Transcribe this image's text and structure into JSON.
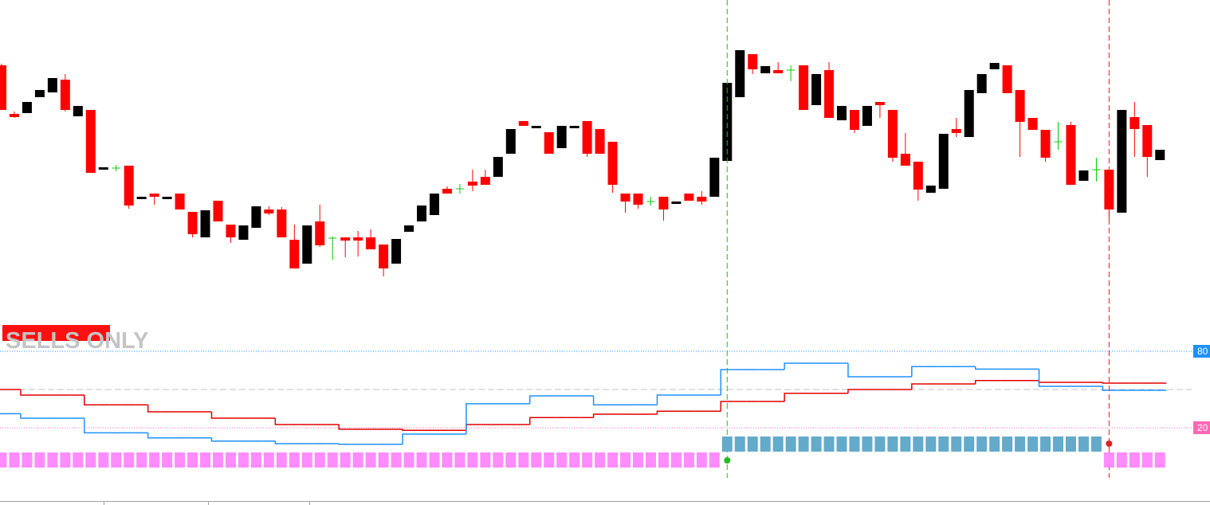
{
  "chart_data": [
    {
      "type": "candlestick",
      "ylim": [
        0,
        400
      ],
      "colors": {
        "up": "#000000",
        "down": "#ff0000",
        "doji": "#00cc00"
      },
      "open": [
        318,
        257,
        258,
        278,
        284,
        300,
        254,
        262,
        187,
        189,
        192,
        150,
        157,
        150,
        157,
        134,
        102,
        148,
        118,
        99,
        114,
        137,
        137,
        99,
        69,
        122,
        101,
        102,
        102,
        102,
        93,
        69,
        109,
        122,
        130,
        163,
        163,
        172,
        178,
        178,
        207,
        248,
        239,
        234,
        214,
        239,
        248,
        238,
        222,
        157,
        157,
        147,
        153,
        144,
        157,
        153,
        153,
        198,
        278,
        332,
        308,
        312,
        312,
        318,
        268,
        312,
        249,
        262,
        242,
        272,
        262,
        207,
        197,
        158,
        163,
        238,
        228,
        283,
        313,
        318,
        287,
        252,
        237,
        222,
        243,
        173,
        187,
        187,
        133,
        253,
        243,
        199
      ],
      "high": [
        320,
        260,
        272,
        287,
        302,
        307,
        267,
        262,
        190,
        193,
        192,
        153,
        157,
        153,
        157,
        134,
        136,
        148,
        118,
        117,
        141,
        141,
        140,
        118,
        117,
        143,
        103,
        102,
        110,
        112,
        93,
        100,
        117,
        142,
        157,
        166,
        169,
        187,
        187,
        203,
        238,
        248,
        242,
        234,
        242,
        242,
        248,
        238,
        222,
        157,
        157,
        153,
        153,
        147,
        157,
        160,
        202,
        296,
        337,
        332,
        317,
        322,
        318,
        318,
        307,
        322,
        267,
        262,
        267,
        272,
        262,
        233,
        197,
        167,
        232,
        252,
        287,
        307,
        321,
        318,
        287,
        252,
        237,
        247,
        247,
        186,
        202,
        187,
        262,
        272,
        243,
        212
      ],
      "low": [
        262,
        252,
        258,
        278,
        284,
        260,
        254,
        183,
        187,
        185,
        138,
        150,
        143,
        150,
        137,
        102,
        102,
        122,
        95,
        99,
        114,
        130,
        102,
        63,
        69,
        90,
        74,
        77,
        78,
        87,
        53,
        69,
        109,
        122,
        130,
        157,
        157,
        160,
        168,
        178,
        207,
        242,
        239,
        207,
        214,
        239,
        203,
        207,
        158,
        133,
        138,
        142,
        123,
        144,
        148,
        143,
        153,
        198,
        278,
        307,
        308,
        308,
        298,
        262,
        268,
        252,
        249,
        233,
        242,
        252,
        197,
        192,
        148,
        158,
        163,
        228,
        228,
        283,
        313,
        283,
        203,
        237,
        197,
        212,
        168,
        173,
        172,
        123,
        133,
        203,
        178,
        199
      ],
      "close": [
        262,
        253,
        272,
        287,
        302,
        262,
        267,
        183,
        190,
        189,
        142,
        153,
        153,
        153,
        137,
        106,
        136,
        122,
        102,
        117,
        141,
        132,
        102,
        63,
        117,
        92,
        101,
        98,
        98,
        87,
        63,
        100,
        117,
        142,
        157,
        157,
        163,
        167,
        168,
        203,
        238,
        242,
        242,
        207,
        242,
        242,
        207,
        207,
        168,
        147,
        143,
        147,
        137,
        147,
        148,
        147,
        202,
        296,
        337,
        313,
        317,
        308,
        312,
        262,
        307,
        252,
        267,
        237,
        267,
        268,
        202,
        192,
        162,
        167,
        232,
        233,
        287,
        307,
        321,
        283,
        247,
        237,
        202,
        222,
        168,
        186,
        187,
        137,
        262,
        238,
        203,
        212
      ]
    },
    {
      "type": "line",
      "ylim": [
        0,
        100
      ],
      "yticks": [
        20,
        80
      ],
      "level_colors": [
        "#ff69b4",
        "#1e90ff"
      ],
      "midline": 50,
      "label": "SELLS ONLY",
      "series": [
        {
          "color": "#e00000",
          "values": [
            50,
            50,
            45.6,
            45.6,
            45.6,
            45.6,
            45.6,
            38,
            38,
            38,
            38,
            38,
            32.5,
            32.5,
            32.5,
            32.5,
            32.5,
            27.5,
            27.5,
            27.5,
            27.5,
            27.5,
            22.5,
            22.5,
            22.5,
            22.5,
            22.5,
            18.8,
            18.8,
            18.8,
            18.8,
            18.8,
            18,
            18,
            18,
            18,
            18,
            22.5,
            22.5,
            22.5,
            22.5,
            22.5,
            28,
            28,
            28,
            28,
            28,
            30.6,
            30.6,
            30.6,
            30.6,
            30.6,
            33,
            33,
            33,
            33,
            33,
            40.6,
            40.6,
            40.6,
            40.6,
            40.6,
            47,
            47,
            47,
            47,
            47,
            50,
            50,
            50,
            50,
            50,
            54.4,
            54.4,
            54.4,
            54.4,
            54.4,
            57,
            57,
            57,
            57,
            57,
            55.6,
            55.6,
            55.6,
            55.6,
            55.6,
            55,
            55,
            55,
            55,
            55
          ]
        },
        {
          "color": "#1e90ff",
          "values": [
            31,
            31,
            27.5,
            27.5,
            27.5,
            27.5,
            27.5,
            16,
            16,
            16,
            16,
            16,
            12,
            12,
            12,
            12,
            12,
            9.5,
            9.5,
            9.5,
            9.5,
            9.5,
            7.5,
            7.5,
            7.5,
            7.5,
            7.5,
            7,
            7,
            7,
            7,
            7,
            15,
            15,
            15,
            15,
            15,
            38.8,
            38.8,
            38.8,
            38.8,
            38.8,
            45,
            45,
            45,
            45,
            45,
            38,
            38,
            38,
            38,
            38,
            45.6,
            45.6,
            45.6,
            45.6,
            45.6,
            65.6,
            65.6,
            65.6,
            65.6,
            65.6,
            70.6,
            70.6,
            70.6,
            70.6,
            70.6,
            60,
            60,
            60,
            60,
            60,
            68,
            68,
            68,
            68,
            68,
            66,
            66,
            66,
            66,
            66,
            52.5,
            52.5,
            52.5,
            52.5,
            52.5,
            49.4,
            49.4,
            49.4,
            49.4,
            49.4
          ]
        }
      ],
      "signal": {
        "colors": [
          "#ff8cff",
          "#63aacb"
        ],
        "change_colors": [
          "#dd2222",
          "#22bb22"
        ],
        "values": [
          -1,
          -1,
          -1,
          -1,
          -1,
          -1,
          -1,
          -1,
          -1,
          -1,
          -1,
          -1,
          -1,
          -1,
          -1,
          -1,
          -1,
          -1,
          -1,
          -1,
          -1,
          -1,
          -1,
          -1,
          -1,
          -1,
          -1,
          -1,
          -1,
          -1,
          -1,
          -1,
          -1,
          -1,
          -1,
          -1,
          -1,
          -1,
          -1,
          -1,
          -1,
          -1,
          -1,
          -1,
          -1,
          -1,
          -1,
          -1,
          -1,
          -1,
          -1,
          -1,
          -1,
          -1,
          -1,
          -1,
          -1,
          1,
          1,
          1,
          1,
          1,
          1,
          1,
          1,
          1,
          1,
          1,
          1,
          1,
          1,
          1,
          1,
          1,
          1,
          1,
          1,
          1,
          1,
          1,
          1,
          1,
          1,
          1,
          1,
          1,
          1,
          -1,
          -1,
          -1,
          -1,
          -1
        ]
      }
    }
  ]
}
